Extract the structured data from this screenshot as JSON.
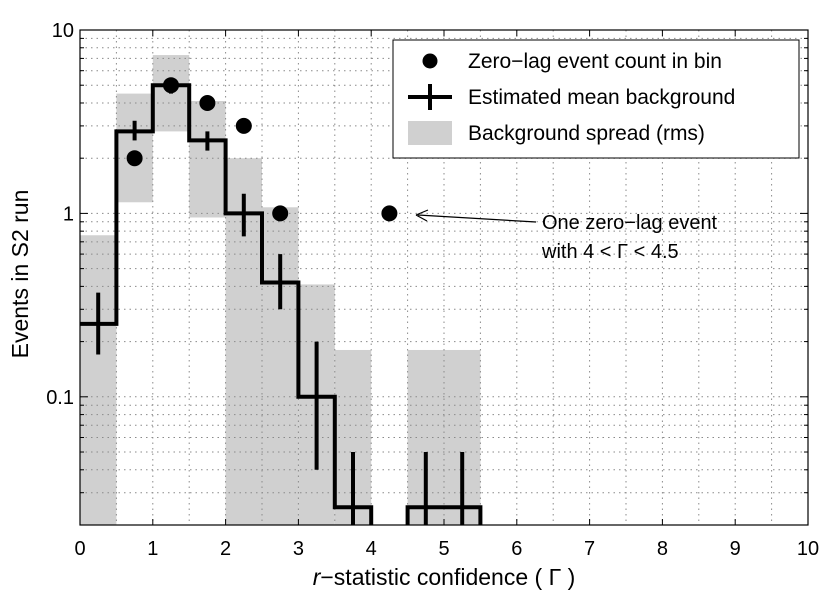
{
  "chart_data": {
    "type": "histogram",
    "title": "",
    "xlabel_var": "r",
    "xlabel_rest": "−statistic confidence ( Γ )",
    "ylabel": "Events in S2 run",
    "xlim": [
      0,
      10
    ],
    "ylim": [
      0.02,
      10
    ],
    "yscale": "log",
    "x_ticks": [
      0,
      1,
      2,
      3,
      4,
      5,
      6,
      7,
      8,
      9,
      10
    ],
    "x_tick_labels": [
      "0",
      "1",
      "2",
      "3",
      "4",
      "5",
      "6",
      "7",
      "8",
      "9",
      "10"
    ],
    "y_ticks": [
      0.1,
      1,
      10
    ],
    "y_tick_labels": [
      "0.1",
      "1",
      "10"
    ],
    "grid": true,
    "bins": [
      {
        "lo": 0.0,
        "hi": 0.5,
        "mean_bg": 0.25,
        "spread_low": 0.02,
        "spread_high": 0.76,
        "err_low": 0.17,
        "err_high": 0.37
      },
      {
        "lo": 0.5,
        "hi": 1.0,
        "mean_bg": 2.8,
        "spread_low": 1.15,
        "spread_high": 4.5,
        "err_low": 2.5,
        "err_high": 3.2
      },
      {
        "lo": 1.0,
        "hi": 1.5,
        "mean_bg": 5.0,
        "spread_low": 2.8,
        "spread_high": 7.3,
        "err_low": 4.5,
        "err_high": 5.5
      },
      {
        "lo": 1.5,
        "hi": 2.0,
        "mean_bg": 2.5,
        "spread_low": 0.95,
        "spread_high": 4.1,
        "err_low": 2.2,
        "err_high": 2.8
      },
      {
        "lo": 2.0,
        "hi": 2.5,
        "mean_bg": 1.0,
        "spread_low": 0.02,
        "spread_high": 2.0,
        "err_low": 0.75,
        "err_high": 1.28
      },
      {
        "lo": 2.5,
        "hi": 3.0,
        "mean_bg": 0.42,
        "spread_low": 0.02,
        "spread_high": 1.08,
        "err_low": 0.3,
        "err_high": 0.6
      },
      {
        "lo": 3.0,
        "hi": 3.5,
        "mean_bg": 0.1,
        "spread_low": 0.02,
        "spread_high": 0.41,
        "err_low": 0.04,
        "err_high": 0.2
      },
      {
        "lo": 3.5,
        "hi": 4.0,
        "mean_bg": 0.025,
        "spread_low": 0.02,
        "spread_high": 0.18,
        "err_low": 0.02,
        "err_high": 0.05
      },
      {
        "lo": 4.5,
        "hi": 5.0,
        "mean_bg": 0.025,
        "spread_low": 0.02,
        "spread_high": 0.18,
        "err_low": 0.02,
        "err_high": 0.05
      },
      {
        "lo": 5.0,
        "hi": 5.5,
        "mean_bg": 0.025,
        "spread_low": 0.02,
        "spread_high": 0.18,
        "err_low": 0.02,
        "err_high": 0.05
      }
    ],
    "zero_lag_counts": [
      {
        "x": 0.75,
        "count": 2
      },
      {
        "x": 1.25,
        "count": 5
      },
      {
        "x": 1.75,
        "count": 4
      },
      {
        "x": 2.25,
        "count": 3
      },
      {
        "x": 2.75,
        "count": 1
      },
      {
        "x": 4.25,
        "count": 1
      }
    ],
    "legend": [
      {
        "label": "Zero−lag event count in bin",
        "marker": "dot"
      },
      {
        "label": "Estimated mean background",
        "marker": "cross"
      },
      {
        "label": "Background spread (rms)",
        "marker": "box"
      }
    ],
    "legend_position": "top-right",
    "annotation": {
      "lines": [
        "One zero−lag event",
        "with 4 < Γ < 4.5"
      ],
      "points_to": {
        "x": 4.25,
        "y": 1
      }
    },
    "colors": {
      "spread": "#d0d0d0",
      "line": "#000000",
      "grid": "#8a8a8a",
      "frame": "#000000"
    }
  }
}
